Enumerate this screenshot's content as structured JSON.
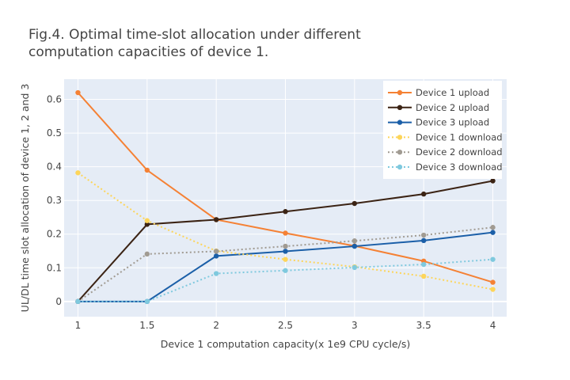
{
  "chart_data": {
    "type": "line",
    "title_lines": [
      "Fig.4. Optimal time-slot allocation under different",
      "computation capacities of device 1."
    ],
    "xlabel": "Device 1 computation capacity(x 1e9 CPU cycle/s)",
    "ylabel": "UL/DL time slot allocation of device 1, 2 and 3",
    "x": [
      1,
      1.5,
      2,
      2.5,
      3,
      3.5,
      4
    ],
    "xlim": [
      0.9,
      4.1
    ],
    "ylim": [
      -0.045,
      0.66
    ],
    "xticks": [
      1,
      1.5,
      2,
      2.5,
      3,
      3.5,
      4
    ],
    "xtick_labels": [
      "1",
      "1.5",
      "2",
      "2.5",
      "3",
      "3.5",
      "4"
    ],
    "yticks": [
      0,
      0.1,
      0.2,
      0.3,
      0.4,
      0.5,
      0.6
    ],
    "ytick_labels": [
      "0",
      "0.1",
      "0.2",
      "0.3",
      "0.4",
      "0.5",
      "0.6"
    ],
    "grid": true,
    "legend_position": "top-right",
    "series": [
      {
        "name": "Device 1 upload",
        "color": "#F58134",
        "dash": "solid",
        "values": [
          0.62,
          0.39,
          0.243,
          0.203,
          0.165,
          0.12,
          0.057
        ]
      },
      {
        "name": "Device 2 upload",
        "color": "#3B2314",
        "dash": "solid",
        "values": [
          0.0,
          0.229,
          0.243,
          0.267,
          0.291,
          0.319,
          0.358
        ]
      },
      {
        "name": "Device 3 upload",
        "color": "#1B5FA8",
        "dash": "solid",
        "values": [
          0.0,
          0.0,
          0.135,
          0.149,
          0.164,
          0.181,
          0.205
        ]
      },
      {
        "name": "Device 1 download",
        "color": "#FDD55A",
        "dash": "dot",
        "values": [
          0.382,
          0.24,
          0.15,
          0.125,
          0.103,
          0.075,
          0.036
        ]
      },
      {
        "name": "Device 2 download",
        "color": "#A19B92",
        "dash": "dot",
        "values": [
          0.0,
          0.141,
          0.149,
          0.164,
          0.18,
          0.197,
          0.22
        ]
      },
      {
        "name": "Device 3 download",
        "color": "#7FC9DE",
        "dash": "dot",
        "values": [
          0.0,
          0.0,
          0.083,
          0.092,
          0.101,
          0.11,
          0.125
        ]
      }
    ]
  }
}
